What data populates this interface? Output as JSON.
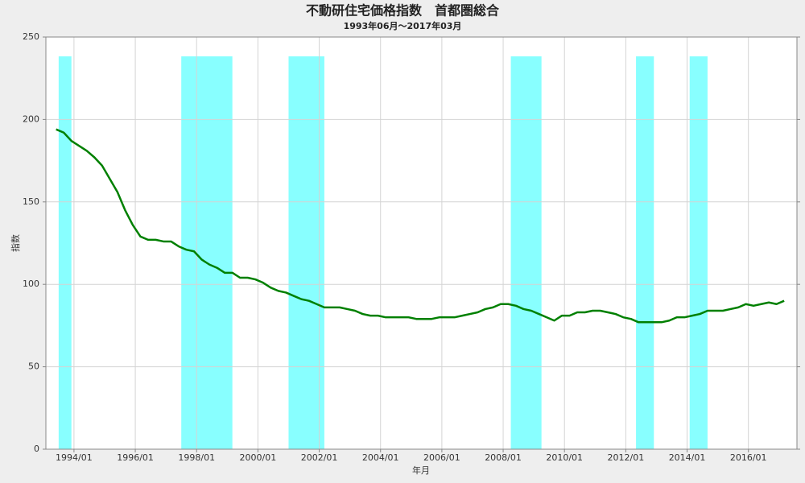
{
  "chart_data": {
    "type": "line",
    "title": "不動研住宅価格指数　首都圏総合",
    "subtitle": "1993年06月～2017年03月",
    "x_label": "年月",
    "y_label": "指数",
    "x": [
      "1993/06",
      "1993/09",
      "1993/12",
      "1994/03",
      "1994/06",
      "1994/09",
      "1994/12",
      "1995/03",
      "1995/06",
      "1995/09",
      "1995/12",
      "1996/03",
      "1996/06",
      "1996/09",
      "1996/12",
      "1997/03",
      "1997/06",
      "1997/09",
      "1997/12",
      "1998/03",
      "1998/06",
      "1998/09",
      "1998/12",
      "1999/03",
      "1999/06",
      "1999/09",
      "1999/12",
      "2000/03",
      "2000/06",
      "2000/09",
      "2000/12",
      "2001/03",
      "2001/06",
      "2001/09",
      "2001/12",
      "2002/03",
      "2002/06",
      "2002/09",
      "2002/12",
      "2003/03",
      "2003/06",
      "2003/09",
      "2003/12",
      "2004/03",
      "2004/06",
      "2004/09",
      "2004/12",
      "2005/03",
      "2005/06",
      "2005/09",
      "2005/12",
      "2006/03",
      "2006/06",
      "2006/09",
      "2006/12",
      "2007/03",
      "2007/06",
      "2007/09",
      "2007/12",
      "2008/03",
      "2008/06",
      "2008/09",
      "2008/12",
      "2009/03",
      "2009/06",
      "2009/09",
      "2009/12",
      "2010/03",
      "2010/06",
      "2010/09",
      "2010/12",
      "2011/03",
      "2011/06",
      "2011/09",
      "2011/12",
      "2012/03",
      "2012/06",
      "2012/09",
      "2012/12",
      "2013/03",
      "2013/06",
      "2013/09",
      "2013/12",
      "2014/03",
      "2014/06",
      "2014/09",
      "2014/12",
      "2015/03",
      "2015/06",
      "2015/09",
      "2015/12",
      "2016/03",
      "2016/06",
      "2016/09",
      "2016/12",
      "2017/03"
    ],
    "values": [
      194,
      192,
      187,
      184,
      181,
      177,
      172,
      164,
      156,
      145,
      136,
      129,
      127,
      127,
      126,
      126,
      123,
      121,
      120,
      115,
      112,
      110,
      107,
      107,
      104,
      104,
      103,
      101,
      98,
      96,
      95,
      93,
      91,
      90,
      88,
      86,
      86,
      86,
      85,
      84,
      82,
      81,
      81,
      80,
      80,
      80,
      80,
      79,
      79,
      79,
      80,
      80,
      80,
      81,
      82,
      83,
      85,
      86,
      88,
      88,
      87,
      85,
      84,
      82,
      80,
      78,
      81,
      81,
      83,
      83,
      84,
      84,
      83,
      82,
      80,
      79,
      77,
      77,
      77,
      77,
      78,
      80,
      80,
      81,
      82,
      84,
      84,
      84,
      85,
      86,
      88,
      87,
      88,
      89,
      88,
      90
    ],
    "color": "#008000",
    "shaded_periods": [
      {
        "start": "1993/07",
        "end": "1993/12"
      },
      {
        "start": "1997/07",
        "end": "1999/03"
      },
      {
        "start": "2001/01",
        "end": "2002/03"
      },
      {
        "start": "2008/04",
        "end": "2009/04"
      },
      {
        "start": "2012/05",
        "end": "2012/12"
      },
      {
        "start": "2014/02",
        "end": "2014/09"
      }
    ],
    "shade_color": "#88ffff",
    "xlim": [
      "1993/02",
      "2017/08"
    ],
    "xticks": [
      "1994/01",
      "1996/01",
      "1998/01",
      "2000/01",
      "2002/01",
      "2004/01",
      "2006/01",
      "2008/01",
      "2010/01",
      "2012/01",
      "2014/01",
      "2016/01"
    ],
    "ylim": [
      0,
      250
    ],
    "yticks": [
      0,
      50,
      100,
      150,
      200,
      250
    ],
    "grid": true
  }
}
